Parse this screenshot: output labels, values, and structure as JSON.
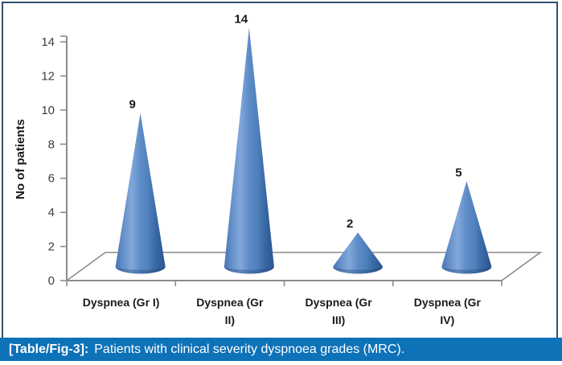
{
  "figure": {
    "caption": {
      "tag": "[Table/Fig-3]:",
      "text": "Patients with clinical severity dyspnoea grades (MRC)."
    }
  },
  "chart_data": {
    "type": "bar",
    "variant": "3d-cone",
    "title": "",
    "xlabel": "",
    "ylabel": "No of patients",
    "categories": [
      "Dyspnea (Gr I)",
      "Dyspnea (Gr II)",
      "Dyspnea (Gr III)",
      "Dyspnea (Gr IV)"
    ],
    "category_lines": [
      [
        "Dyspnea (Gr I)"
      ],
      [
        "Dyspnea (Gr",
        "II)"
      ],
      [
        "Dyspnea (Gr",
        "III)"
      ],
      [
        "Dyspnea (Gr",
        "IV)"
      ]
    ],
    "values": [
      9,
      14,
      2,
      5
    ],
    "ylim": [
      0,
      14
    ],
    "yticks": [
      0,
      2,
      4,
      6,
      8,
      10,
      12,
      14
    ],
    "grid": false,
    "legend": false,
    "data_labels_shown": true,
    "colors": {
      "cone_light": "#82A8DB",
      "cone_mid": "#4F81BD",
      "cone_dark": "#2B5590",
      "axis_line": "#8C8C8C",
      "tick_label": "#3F3F3F",
      "text": "#1A1A1A"
    }
  },
  "colors": {
    "caption_bg": "#0E72B8",
    "caption_fg": "#FFFFFF",
    "panel_border": "#31506B",
    "background": "#FFFFFF"
  }
}
